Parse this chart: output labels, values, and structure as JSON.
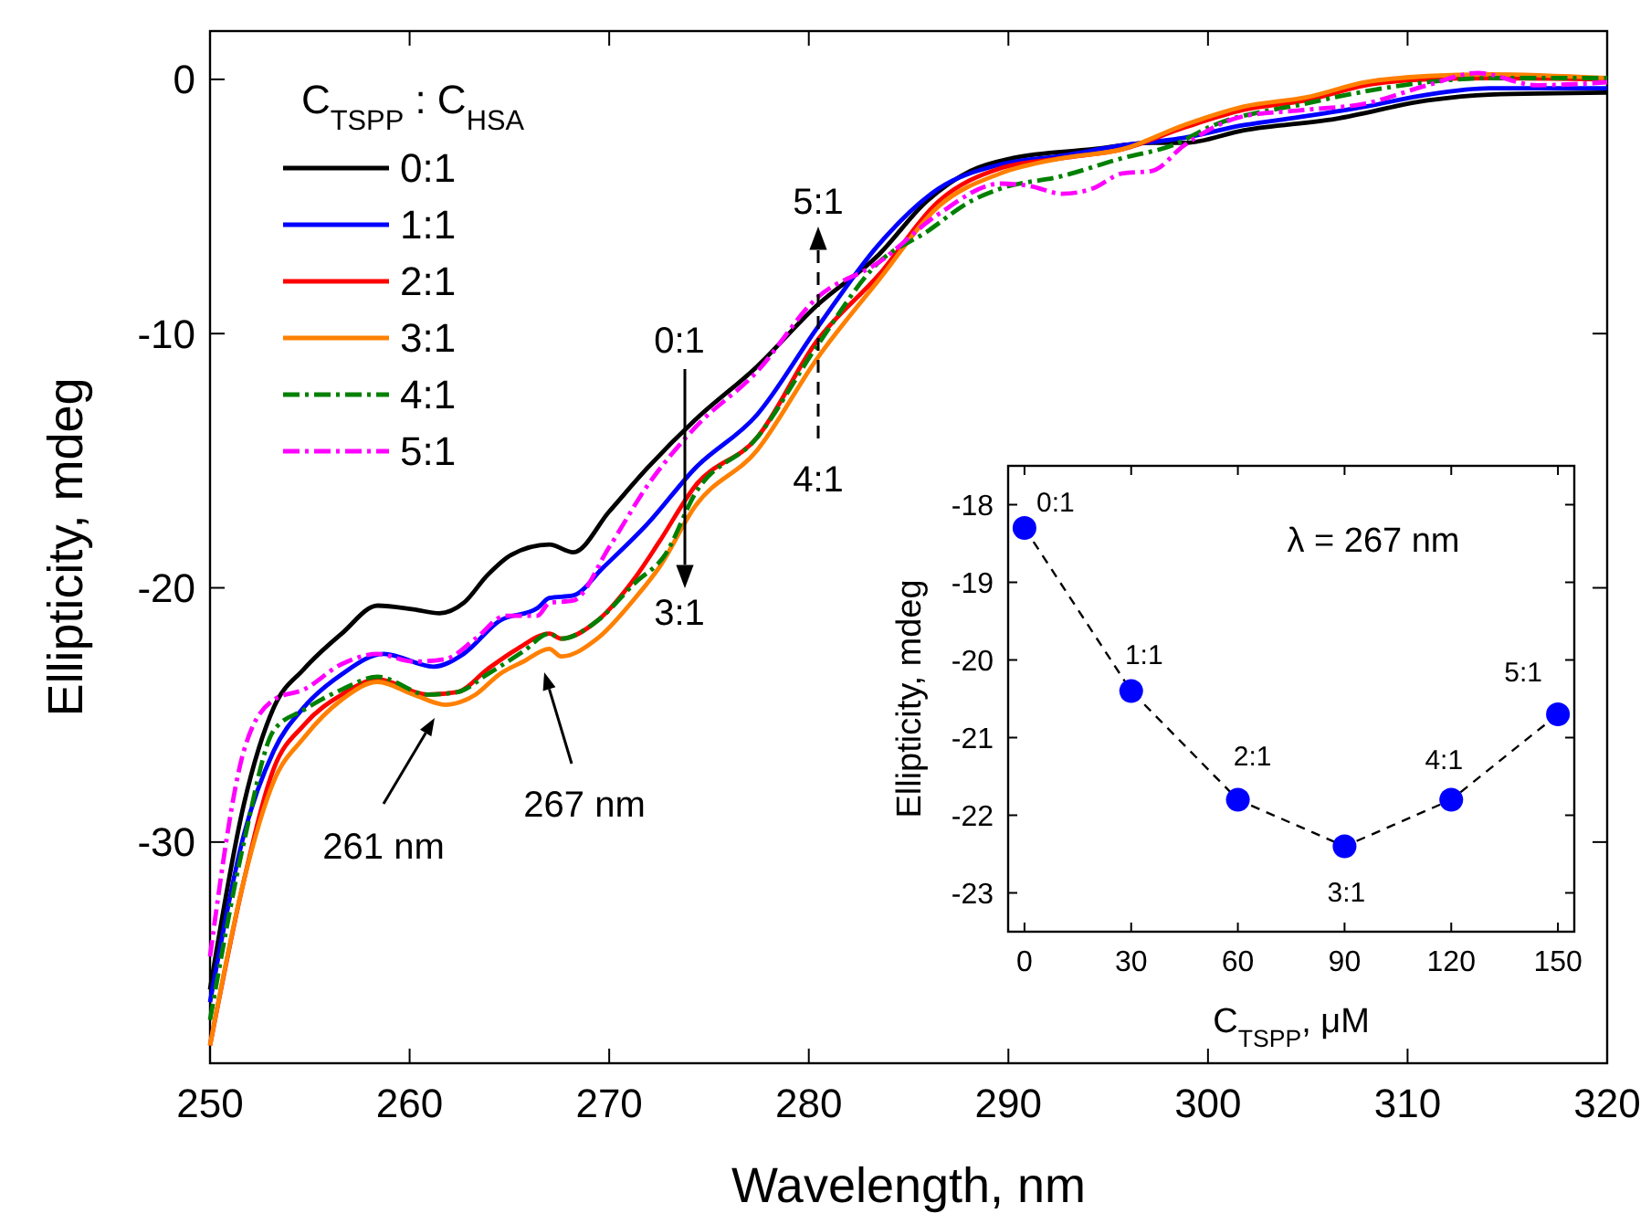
{
  "chart_data": [
    {
      "type": "line",
      "xlabel": "Wavelength, nm",
      "ylabel": "Ellipticity, mdeg",
      "legend_title": "C$_{TSPP}$ : C$_{HSA}$",
      "legend": "top left",
      "grid": false,
      "xlim": [
        250,
        320
      ],
      "xticks": [
        250,
        260,
        270,
        280,
        290,
        300,
        310,
        320
      ],
      "ylim": [
        -38.7,
        1.9
      ],
      "yticks": [
        0,
        -10,
        -20,
        -30
      ],
      "series": [
        {
          "name": "0:1",
          "color": "#000000",
          "line_style": "solid",
          "x": [
            250,
            251.7,
            253.2,
            254.7,
            256.6,
            258.4,
            260.2,
            261.5,
            262.7,
            263.9,
            265.1,
            267.0,
            268.2,
            270.0,
            271.9,
            274.3,
            277.4,
            280.4,
            283.5,
            285.9,
            288.1,
            290.2,
            294.2,
            297.2,
            298.8,
            301.8,
            306.4,
            311.0,
            314.1,
            320
          ],
          "values": [
            -35.8,
            -28.5,
            -24.7,
            -23.2,
            -21.8,
            -20.7,
            -20.85,
            -21.0,
            -20.6,
            -19.5,
            -18.7,
            -18.3,
            -18.6,
            -17.0,
            -15.3,
            -13.4,
            -11.3,
            -8.9,
            -6.9,
            -4.8,
            -3.6,
            -3.1,
            -2.75,
            -2.5,
            -2.5,
            -2.0,
            -1.55,
            -0.83,
            -0.6,
            -0.52
          ]
        },
        {
          "name": "1:1",
          "color": "#0000ff",
          "line_style": "solid",
          "x": [
            250,
            251.7,
            253.2,
            254.7,
            256.6,
            258.7,
            261.2,
            262.7,
            264.5,
            266.4,
            267.0,
            268.2,
            269.7,
            271.9,
            274.3,
            277.4,
            280.4,
            283.5,
            286.5,
            289.6,
            292.7,
            295.7,
            298.8,
            301.8,
            304.9,
            307.9,
            311.0,
            314.1,
            320
          ],
          "values": [
            -36.3,
            -29.7,
            -26.4,
            -24.7,
            -23.4,
            -22.6,
            -23.1,
            -22.6,
            -21.3,
            -20.8,
            -20.4,
            -20.3,
            -19.2,
            -17.5,
            -15.3,
            -13.2,
            -9.8,
            -6.5,
            -4.3,
            -3.35,
            -3.0,
            -2.6,
            -2.3,
            -1.8,
            -1.45,
            -1.07,
            -0.6,
            -0.35,
            -0.35
          ]
        },
        {
          "name": "2:1",
          "color": "#ff0000",
          "line_style": "solid",
          "x": [
            250,
            251.7,
            253.2,
            254.7,
            256.6,
            258.4,
            260.9,
            262.4,
            263.9,
            265.4,
            267.0,
            267.6,
            269.4,
            271.3,
            272.5,
            274.3,
            277.4,
            280.4,
            283.5,
            286.5,
            289.6,
            292.7,
            295.7,
            298.8,
            301.8,
            304.9,
            307.9,
            311.0,
            314.1,
            320
          ],
          "values": [
            -38,
            -31.5,
            -27.1,
            -25.4,
            -24.2,
            -23.6,
            -24.2,
            -24.1,
            -23.2,
            -22.4,
            -21.8,
            -22.0,
            -21.3,
            -19.6,
            -18.2,
            -16.0,
            -14.1,
            -10.3,
            -7.7,
            -4.8,
            -3.5,
            -3.1,
            -2.75,
            -1.9,
            -1.2,
            -0.83,
            -0.23,
            0.0,
            0.05,
            0.0
          ]
        },
        {
          "name": "3:1",
          "color": "#ff8000",
          "line_style": "solid",
          "x": [
            250,
            251.7,
            253.2,
            254.7,
            256.6,
            258.4,
            260.2,
            261.8,
            263.3,
            264.5,
            265.7,
            267.0,
            267.6,
            269.4,
            271.3,
            272.5,
            274.3,
            277.4,
            280.4,
            283.5,
            286.5,
            289.6,
            292.7,
            295.7,
            298.8,
            301.8,
            304.9,
            307.9,
            311.0,
            314.1,
            320
          ],
          "values": [
            -38,
            -31.5,
            -27.6,
            -25.9,
            -24.4,
            -23.7,
            -24.2,
            -24.6,
            -24.2,
            -23.4,
            -22.9,
            -22.4,
            -22.7,
            -22.0,
            -20.4,
            -19.2,
            -16.8,
            -14.6,
            -11.0,
            -7.9,
            -5.0,
            -3.7,
            -3.1,
            -2.75,
            -1.8,
            -1.07,
            -0.71,
            -0.11,
            0.13,
            0.2,
            0.05
          ]
        },
        {
          "name": "4:1",
          "color": "#008000",
          "line_style": "dashdot",
          "x": [
            250,
            251.7,
            253.2,
            254.7,
            256.6,
            258.4,
            260.9,
            262.4,
            263.9,
            265.7,
            267.0,
            267.6,
            269.4,
            271.3,
            272.8,
            274.3,
            277.4,
            280.4,
            283.5,
            285.9,
            288.1,
            289.6,
            292.7,
            295.7,
            298.2,
            300.3,
            304.9,
            307.9,
            311.0,
            314.1,
            320
          ],
          "values": [
            -37,
            -30,
            -25.6,
            -24.8,
            -24.0,
            -23.5,
            -24.2,
            -24.1,
            -23.4,
            -22.5,
            -21.8,
            -22.0,
            -21.3,
            -19.8,
            -18.7,
            -16.3,
            -14.1,
            -10.5,
            -7.2,
            -6.0,
            -4.8,
            -4.3,
            -3.8,
            -3.1,
            -2.6,
            -1.8,
            -0.95,
            -0.47,
            -0.11,
            0.05,
            0.05
          ]
        },
        {
          "name": "5:1",
          "color": "#ff00ff",
          "line_style": "dashdot",
          "x": [
            250,
            251.7,
            253.2,
            254.7,
            256.6,
            258.4,
            260.2,
            261.8,
            263.3,
            264.8,
            266.4,
            267.0,
            268.2,
            270.0,
            271.9,
            274.3,
            277.4,
            280.4,
            283.5,
            286.5,
            289.6,
            291.1,
            292.7,
            294.2,
            295.7,
            297.2,
            298.8,
            301.8,
            304.9,
            307.9,
            311.0,
            313.5,
            316.5,
            320
          ],
          "values": [
            -34.5,
            -26.4,
            -24.4,
            -24.0,
            -23.0,
            -22.6,
            -22.9,
            -22.8,
            -22.0,
            -21.1,
            -21.1,
            -20.6,
            -20.5,
            -18.4,
            -16.0,
            -13.7,
            -11.5,
            -8.6,
            -7.2,
            -5.3,
            -4.1,
            -4.2,
            -4.5,
            -4.3,
            -3.7,
            -3.6,
            -2.6,
            -1.45,
            -1.2,
            -0.95,
            -0.23,
            0.25,
            -0.23,
            -0.11
          ]
        }
      ],
      "annotations": [
        "0:1",
        "3:1",
        "5:1",
        "4:1",
        "261 nm",
        "267 nm"
      ]
    },
    {
      "type": "line",
      "xlabel": "C$_{TSPP}$, μM",
      "ylabel": "Ellipticity, mdeg",
      "grid": false,
      "xlim": [
        -4.6,
        154.6
      ],
      "xticks": [
        0,
        30,
        60,
        90,
        120,
        150
      ],
      "ylim": [
        -23.5,
        -17.5
      ],
      "yticks": [
        -18,
        -19,
        -20,
        -21,
        -22,
        -23
      ],
      "x": [
        0,
        30,
        60,
        90,
        120,
        150
      ],
      "series": [
        {
          "color": "#000000",
          "line_style": "dashed",
          "values": [
            -18.3,
            -20.4,
            -21.8,
            -22.4,
            -21.8,
            -20.7
          ]
        },
        {
          "type": "scatter",
          "color": "#0000ff",
          "marker": "circle",
          "values": [
            -18.3,
            -20.4,
            -21.8,
            -22.4,
            -21.8,
            -20.7
          ],
          "value_labels": [
            "0:1",
            "1:1",
            "2:1",
            "3:1",
            "4:1",
            "5:1"
          ]
        }
      ],
      "annotations": [
        "λ = 267 nm"
      ]
    }
  ]
}
